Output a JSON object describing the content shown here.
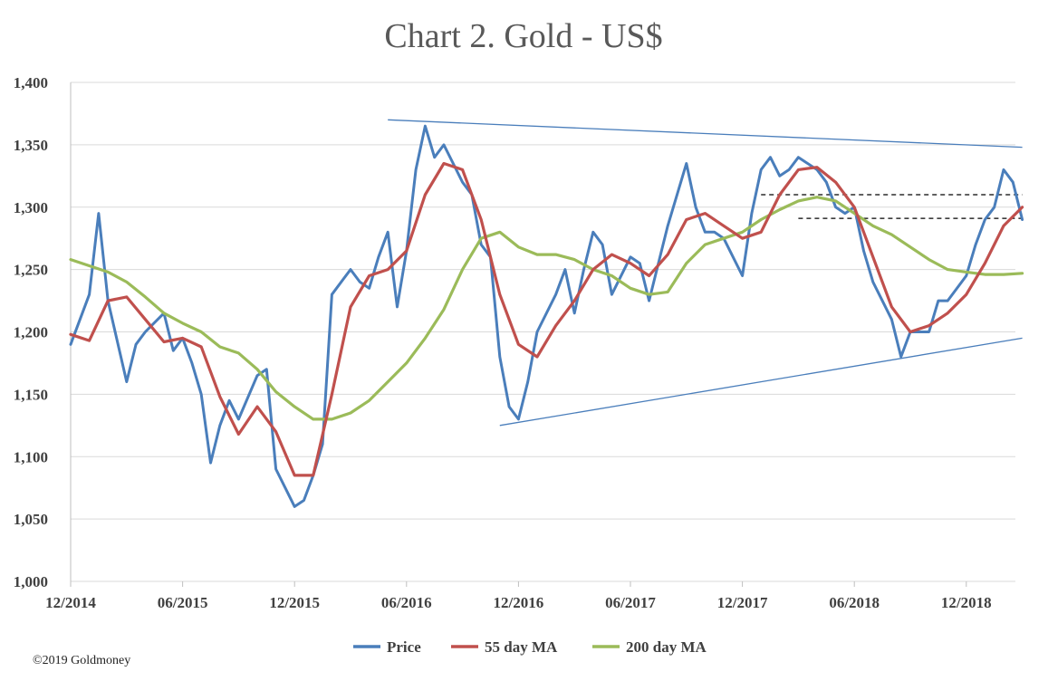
{
  "chart_data": {
    "type": "line",
    "title": "Chart 2. Gold - US$",
    "xlabel": "",
    "ylabel": "",
    "ylim": [
      1000,
      1400
    ],
    "xlim": [
      "2014-12",
      "2019-03"
    ],
    "y_ticks": [
      "1,000",
      "1,050",
      "1,100",
      "1,150",
      "1,200",
      "1,250",
      "1,300",
      "1,350",
      "1,400"
    ],
    "y_tick_values": [
      1000,
      1050,
      1100,
      1150,
      1200,
      1250,
      1300,
      1350,
      1400
    ],
    "x_ticks": [
      "12/2014",
      "06/2015",
      "12/2015",
      "06/2016",
      "12/2016",
      "06/2017",
      "12/2017",
      "06/2018",
      "12/2018"
    ],
    "x_tick_values": [
      "2014-12",
      "2015-06",
      "2015-12",
      "2016-06",
      "2016-12",
      "2017-06",
      "2017-12",
      "2018-06",
      "2018-12"
    ],
    "grid": "horizontal",
    "legend_position": "bottom",
    "series": [
      {
        "name": "Price",
        "color": "#4a7ebb",
        "x": [
          "2014-12",
          "2015-01",
          "2015-01",
          "2015-02",
          "2015-03",
          "2015-03",
          "2015-04",
          "2015-05",
          "2015-05",
          "2015-06",
          "2015-06",
          "2015-07",
          "2015-07",
          "2015-08",
          "2015-08",
          "2015-09",
          "2015-10",
          "2015-10",
          "2015-11",
          "2015-11",
          "2015-12",
          "2015-12",
          "2016-01",
          "2016-01",
          "2016-02",
          "2016-03",
          "2016-03",
          "2016-04",
          "2016-04",
          "2016-05",
          "2016-05",
          "2016-06",
          "2016-06",
          "2016-07",
          "2016-07",
          "2016-08",
          "2016-08",
          "2016-09",
          "2016-09",
          "2016-10",
          "2016-10",
          "2016-11",
          "2016-11",
          "2016-12",
          "2016-12",
          "2017-01",
          "2017-02",
          "2017-02",
          "2017-03",
          "2017-03",
          "2017-04",
          "2017-04",
          "2017-05",
          "2017-06",
          "2017-06",
          "2017-07",
          "2017-07",
          "2017-08",
          "2017-09",
          "2017-09",
          "2017-10",
          "2017-10",
          "2017-11",
          "2017-12",
          "2017-12",
          "2018-01",
          "2018-01",
          "2018-02",
          "2018-02",
          "2018-03",
          "2018-04",
          "2018-04",
          "2018-05",
          "2018-05",
          "2018-06",
          "2018-06",
          "2018-07",
          "2018-08",
          "2018-08",
          "2018-09",
          "2018-10",
          "2018-10",
          "2018-11",
          "2018-12",
          "2018-12",
          "2019-01",
          "2019-01",
          "2019-02",
          "2019-02",
          "2019-03"
        ],
        "values": [
          1190,
          1230,
          1295,
          1225,
          1160,
          1190,
          1200,
          1215,
          1185,
          1195,
          1175,
          1150,
          1095,
          1125,
          1145,
          1130,
          1165,
          1170,
          1090,
          1075,
          1060,
          1065,
          1085,
          1110,
          1230,
          1250,
          1240,
          1235,
          1260,
          1280,
          1220,
          1265,
          1330,
          1365,
          1340,
          1350,
          1335,
          1320,
          1310,
          1270,
          1260,
          1180,
          1140,
          1130,
          1160,
          1200,
          1230,
          1250,
          1215,
          1250,
          1280,
          1270,
          1230,
          1260,
          1255,
          1225,
          1255,
          1285,
          1335,
          1300,
          1280,
          1280,
          1275,
          1245,
          1295,
          1330,
          1340,
          1325,
          1330,
          1340,
          1330,
          1320,
          1300,
          1295,
          1300,
          1265,
          1240,
          1210,
          1180,
          1200,
          1200,
          1225,
          1225,
          1245,
          1270,
          1290,
          1300,
          1330,
          1320,
          1290
        ]
      },
      {
        "name": "55 day MA",
        "color": "#c0504d",
        "x": [
          "2014-12",
          "2015-01",
          "2015-02",
          "2015-03",
          "2015-04",
          "2015-05",
          "2015-06",
          "2015-07",
          "2015-08",
          "2015-09",
          "2015-10",
          "2015-11",
          "2015-12",
          "2016-01",
          "2016-02",
          "2016-03",
          "2016-04",
          "2016-05",
          "2016-06",
          "2016-07",
          "2016-08",
          "2016-09",
          "2016-10",
          "2016-11",
          "2016-12",
          "2017-01",
          "2017-02",
          "2017-03",
          "2017-04",
          "2017-05",
          "2017-06",
          "2017-07",
          "2017-08",
          "2017-09",
          "2017-10",
          "2017-11",
          "2017-12",
          "2018-01",
          "2018-02",
          "2018-03",
          "2018-04",
          "2018-05",
          "2018-06",
          "2018-07",
          "2018-08",
          "2018-09",
          "2018-10",
          "2018-11",
          "2018-12",
          "2019-01",
          "2019-02",
          "2019-03"
        ],
        "values": [
          1198,
          1193,
          1225,
          1228,
          1210,
          1192,
          1195,
          1188,
          1148,
          1118,
          1140,
          1120,
          1085,
          1085,
          1150,
          1220,
          1245,
          1250,
          1265,
          1310,
          1335,
          1330,
          1290,
          1230,
          1190,
          1180,
          1205,
          1225,
          1250,
          1262,
          1255,
          1245,
          1262,
          1290,
          1295,
          1285,
          1275,
          1280,
          1310,
          1330,
          1332,
          1320,
          1300,
          1260,
          1220,
          1200,
          1205,
          1215,
          1230,
          1255,
          1285,
          1300
        ]
      },
      {
        "name": "200 day MA",
        "color": "#9bbb59",
        "x": [
          "2014-12",
          "2015-01",
          "2015-02",
          "2015-03",
          "2015-04",
          "2015-05",
          "2015-06",
          "2015-07",
          "2015-08",
          "2015-09",
          "2015-10",
          "2015-11",
          "2015-12",
          "2016-01",
          "2016-02",
          "2016-03",
          "2016-04",
          "2016-05",
          "2016-06",
          "2016-07",
          "2016-08",
          "2016-09",
          "2016-10",
          "2016-11",
          "2016-12",
          "2017-01",
          "2017-02",
          "2017-03",
          "2017-04",
          "2017-05",
          "2017-06",
          "2017-07",
          "2017-08",
          "2017-09",
          "2017-10",
          "2017-11",
          "2017-12",
          "2018-01",
          "2018-02",
          "2018-03",
          "2018-04",
          "2018-05",
          "2018-06",
          "2018-07",
          "2018-08",
          "2018-09",
          "2018-10",
          "2018-11",
          "2018-12",
          "2019-01",
          "2019-02",
          "2019-03"
        ],
        "values": [
          1258,
          1253,
          1248,
          1240,
          1228,
          1215,
          1207,
          1200,
          1188,
          1183,
          1170,
          1152,
          1140,
          1130,
          1130,
          1135,
          1145,
          1160,
          1175,
          1195,
          1218,
          1250,
          1275,
          1280,
          1268,
          1262,
          1262,
          1258,
          1250,
          1245,
          1235,
          1230,
          1232,
          1255,
          1270,
          1275,
          1280,
          1290,
          1298,
          1305,
          1308,
          1305,
          1295,
          1285,
          1278,
          1268,
          1258,
          1250,
          1248,
          1246,
          1246,
          1247
        ]
      }
    ],
    "trend_lines": [
      {
        "from": [
          "2016-05",
          1370
        ],
        "to": [
          "2019-03",
          1348
        ],
        "color": "#4a7ebb"
      },
      {
        "from": [
          "2016-11",
          1125
        ],
        "to": [
          "2019-03",
          1195
        ],
        "color": "#4a7ebb"
      }
    ],
    "reference_lines": [
      {
        "from": [
          "2018-01",
          1310
        ],
        "to": [
          "2019-03",
          1310
        ],
        "style": "dashed",
        "color": "#000000"
      },
      {
        "from": [
          "2018-03",
          1291
        ],
        "to": [
          "2019-03",
          1291
        ],
        "style": "dashed",
        "color": "#000000"
      }
    ]
  },
  "footer": {
    "copyright": "©2019 Goldmoney"
  }
}
